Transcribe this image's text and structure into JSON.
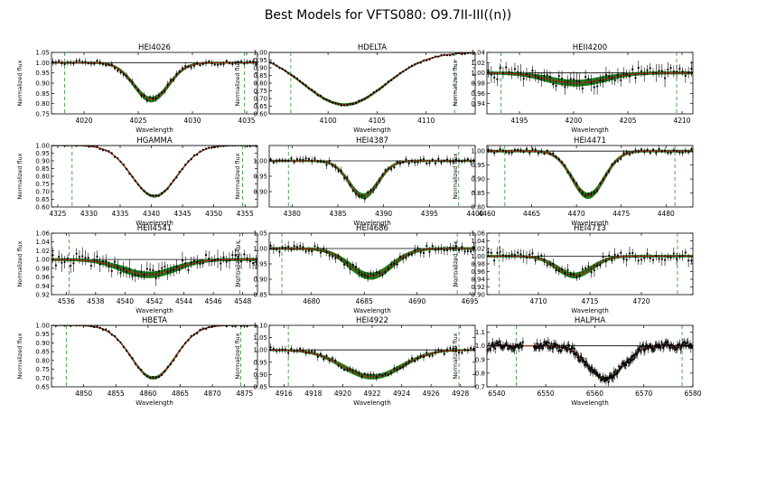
{
  "figure": {
    "title": "Best Models for VFTS080: O9.7II-III((n))"
  },
  "chart_data": [
    {
      "type": "line",
      "title": "HEI4026",
      "xlabel": "Wavelength",
      "ylabel": "Normalized flux",
      "xlim": [
        4017,
        4036
      ],
      "ylim": [
        0.75,
        1.05
      ],
      "xticks": [
        4020,
        4025,
        4030,
        4035
      ],
      "xticklabels": [
        "4020",
        "4025",
        "4030",
        "4035"
      ],
      "yticks": [
        0.75,
        0.8,
        0.85,
        0.9,
        0.95,
        1.0,
        1.05
      ],
      "yticklabels": [
        "0.75",
        "0.80",
        "0.85",
        "0.90",
        "0.95",
        "1.00",
        "1.05"
      ],
      "fit_window": [
        4018.2,
        4034.8
      ],
      "line_center": 4026.2,
      "depth": 0.18,
      "width": 1.6,
      "noise": 0.012,
      "band": 0.012
    },
    {
      "type": "line",
      "title": "HDELTA",
      "xlabel": "Wavelength",
      "ylabel": "Normalized flux",
      "xlim": [
        4094,
        4115
      ],
      "ylim": [
        0.6,
        1.0
      ],
      "xticks": [
        4100,
        4105,
        4110
      ],
      "xticklabels": [
        "4100",
        "4105",
        "4110"
      ],
      "yticks": [
        0.6,
        0.65,
        0.7,
        0.75,
        0.8,
        0.85,
        0.9,
        0.95,
        1.0
      ],
      "yticklabels": [
        "0.60",
        "0.65",
        "0.70",
        "0.75",
        "0.80",
        "0.85",
        "0.90",
        "0.95",
        "1.00"
      ],
      "fit_window": [
        4096.2,
        4112.9
      ],
      "line_center": 4101.7,
      "depth": 0.34,
      "width": 4.2,
      "noise": 0.006,
      "band": 0.008
    },
    {
      "type": "line",
      "title": "HEII4200",
      "xlabel": "Wavelength",
      "ylabel": "Normalized flux",
      "xlim": [
        4192,
        4211
      ],
      "ylim": [
        0.92,
        1.04
      ],
      "xticks": [
        4195,
        4200,
        4205,
        4210
      ],
      "xticklabels": [
        "4195",
        "4200",
        "4205",
        "4210"
      ],
      "yticks": [
        0.94,
        0.96,
        0.98,
        1.0,
        1.02,
        1.04
      ],
      "yticklabels": [
        "0.94",
        "0.96",
        "0.98",
        "1.00",
        "1.02",
        "1.04"
      ],
      "fit_window": [
        4193.3,
        4209.5
      ],
      "line_center": 4200.2,
      "depth": 0.02,
      "width": 2.6,
      "noise": 0.012,
      "band": 0.005
    },
    {
      "type": "line",
      "title": "HGAMMA",
      "xlabel": "Wavelength",
      "ylabel": "Normalized flux",
      "xlim": [
        4324,
        4357
      ],
      "ylim": [
        0.6,
        1.0
      ],
      "xticks": [
        4325,
        4330,
        4335,
        4340,
        4345,
        4350,
        4355
      ],
      "xticklabels": [
        "4325",
        "4330",
        "4335",
        "4340",
        "4345",
        "4350",
        "4355"
      ],
      "yticks": [
        0.6,
        0.65,
        0.7,
        0.75,
        0.8,
        0.85,
        0.9,
        0.95,
        1.0
      ],
      "yticklabels": [
        "0.60",
        "0.65",
        "0.70",
        "0.75",
        "0.80",
        "0.85",
        "0.90",
        "0.95",
        "1.00"
      ],
      "fit_window": [
        4327.3,
        4354.6
      ],
      "line_center": 4340.5,
      "depth": 0.33,
      "width": 3.6,
      "noise": 0.006,
      "band": 0.008
    },
    {
      "type": "line",
      "title": "HEI4387",
      "xlabel": "Wavelength",
      "ylabel": "Normalized flux",
      "xlim": [
        4377.5,
        4400
      ],
      "ylim": [
        0.85,
        1.05
      ],
      "xticks": [
        4380,
        4385,
        4390,
        4395,
        4400
      ],
      "xticklabels": [
        "4380",
        "4385",
        "4390",
        "4395",
        "4400"
      ],
      "yticks": [
        0.9,
        0.95,
        1.0
      ],
      "yticklabels": [
        "0.90",
        "0.95",
        "1.00"
      ],
      "fit_window": [
        4379.6,
        4398.2
      ],
      "line_center": 4387.8,
      "depth": 0.115,
      "width": 1.6,
      "noise": 0.009,
      "band": 0.008
    },
    {
      "type": "line",
      "title": "HEI4471",
      "xlabel": "Wavelength",
      "ylabel": "Normalized flux",
      "xlim": [
        4460,
        4483
      ],
      "ylim": [
        0.8,
        1.02
      ],
      "xticks": [
        4460,
        4465,
        4470,
        4475,
        4480
      ],
      "xticklabels": [
        "4460",
        "4465",
        "4470",
        "4475",
        "4480"
      ],
      "yticks": [
        0.8,
        0.85,
        0.9,
        0.95,
        1.0
      ],
      "yticklabels": [
        "0.80",
        "0.85",
        "0.90",
        "0.95",
        "1.00"
      ],
      "fit_window": [
        4462.0,
        4481.0
      ],
      "line_center": 4471.3,
      "depth": 0.16,
      "width": 1.8,
      "noise": 0.008,
      "band": 0.01
    },
    {
      "type": "line",
      "title": "HEII4541",
      "xlabel": "Wavelength",
      "ylabel": "Normalized flux",
      "xlim": [
        4535,
        4549
      ],
      "ylim": [
        0.92,
        1.06
      ],
      "xticks": [
        4536,
        4538,
        4540,
        4542,
        4544,
        4546,
        4548
      ],
      "xticklabels": [
        "4536",
        "4538",
        "4540",
        "4542",
        "4544",
        "4546",
        "4548"
      ],
      "yticks": [
        0.92,
        0.94,
        0.96,
        0.98,
        1.0,
        1.02,
        1.04,
        1.06
      ],
      "yticklabels": [
        "0.92",
        "0.94",
        "0.96",
        "0.98",
        "1.00",
        "1.02",
        "1.04",
        "1.06"
      ],
      "fit_window": [
        4536.2,
        4547.8
      ],
      "line_center": 4541.6,
      "depth": 0.035,
      "width": 1.8,
      "noise": 0.014,
      "band": 0.006
    },
    {
      "type": "line",
      "title": "HEI4686",
      "xlabel": "Wavelength",
      "ylabel": "Normalized flux",
      "xlim": [
        4676,
        4695.5
      ],
      "ylim": [
        0.85,
        1.05
      ],
      "xticks": [
        4680,
        4685,
        4690,
        4695
      ],
      "xticklabels": [
        "4680",
        "4685",
        "4690",
        "4695"
      ],
      "yticks": [
        0.85,
        0.9,
        0.95,
        1.0,
        1.05
      ],
      "yticklabels": [
        "0.85",
        "0.90",
        "0.95",
        "1.00",
        "1.05"
      ],
      "fit_window": [
        4677.2,
        4693.8
      ],
      "line_center": 4685.6,
      "depth": 0.09,
      "width": 2.0,
      "noise": 0.012,
      "band": 0.01
    },
    {
      "type": "line",
      "title": "HEI4713",
      "xlabel": "Wavelength",
      "ylabel": "Normalized flux",
      "xlim": [
        4705,
        4725
      ],
      "ylim": [
        0.9,
        1.06
      ],
      "xticks": [
        4710,
        4715,
        4720
      ],
      "xticklabels": [
        "4710",
        "4715",
        "4720"
      ],
      "yticks": [
        0.9,
        0.92,
        0.94,
        0.96,
        0.98,
        1.0,
        1.02,
        1.04,
        1.06
      ],
      "yticklabels": [
        "0.90",
        "0.92",
        "0.94",
        "0.96",
        "0.98",
        "1.00",
        "1.02",
        "1.04",
        "1.06"
      ],
      "fit_window": [
        4706.2,
        4723.5
      ],
      "line_center": 4713.5,
      "depth": 0.05,
      "width": 1.7,
      "noise": 0.012,
      "band": 0.006
    },
    {
      "type": "line",
      "title": "HBETA",
      "xlabel": "Wavelength",
      "ylabel": "Normalized flux",
      "xlim": [
        4845,
        4877
      ],
      "ylim": [
        0.65,
        1.0
      ],
      "xticks": [
        4850,
        4855,
        4860,
        4865,
        4870,
        4875
      ],
      "xticklabels": [
        "4850",
        "4855",
        "4860",
        "4865",
        "4870",
        "4875"
      ],
      "yticks": [
        0.65,
        0.7,
        0.75,
        0.8,
        0.85,
        0.9,
        0.95,
        1.0
      ],
      "yticklabels": [
        "0.65",
        "0.70",
        "0.75",
        "0.80",
        "0.85",
        "0.90",
        "0.95",
        "1.00"
      ],
      "fit_window": [
        4847.3,
        4874.4
      ],
      "line_center": 4860.8,
      "depth": 0.3,
      "width": 3.4,
      "noise": 0.006,
      "band": 0.008
    },
    {
      "type": "line",
      "title": "HEI4922",
      "xlabel": "Wavelength",
      "ylabel": "Normalized flux",
      "xlim": [
        4915,
        4929
      ],
      "ylim": [
        0.85,
        1.1
      ],
      "xticks": [
        4916,
        4918,
        4920,
        4922,
        4924,
        4926,
        4928
      ],
      "xticklabels": [
        "4916",
        "4918",
        "4920",
        "4922",
        "4924",
        "4926",
        "4928"
      ],
      "yticks": [
        0.85,
        0.9,
        0.95,
        1.0,
        1.05,
        1.1
      ],
      "yticklabels": [
        "0.85",
        "0.90",
        "0.95",
        "1.00",
        "1.05",
        "1.10"
      ],
      "fit_window": [
        4916.3,
        4927.9
      ],
      "line_center": 4922.0,
      "depth": 0.11,
      "width": 2.0,
      "noise": 0.011,
      "band": 0.009
    },
    {
      "type": "line",
      "title": "HALPHA",
      "xlabel": "Wavelength",
      "ylabel": "Normalized flux",
      "xlim": [
        6538,
        6580
      ],
      "ylim": [
        0.7,
        1.15
      ],
      "xticks": [
        6540,
        6550,
        6560,
        6570,
        6580
      ],
      "xticklabels": [
        "6540",
        "6550",
        "6560",
        "6570",
        "6580"
      ],
      "yticks": [
        0.7,
        0.8,
        0.9,
        1.0,
        1.1
      ],
      "yticklabels": [
        "0.7",
        "0.8",
        "0.9",
        "1.0",
        "1.1"
      ],
      "fit_window": [
        6544.0,
        6577.8
      ],
      "line_center": 6562.2,
      "depth": 0.24,
      "width": 3.6,
      "noise": 0.025,
      "band": 0.01,
      "gap": [
        6545.5,
        6547.5
      ]
    }
  ]
}
